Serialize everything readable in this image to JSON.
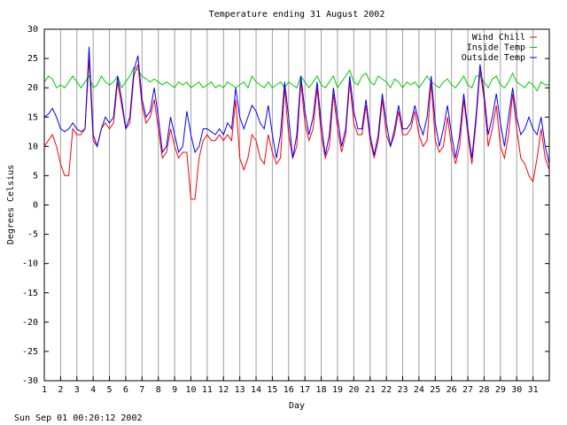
{
  "chart_data": {
    "type": "line",
    "title": "Temperature ending 31 August 2002",
    "x_label": "Day",
    "y_label": "Degrees Celsius",
    "timestamp": "Sun Sep 01 00:20:12 2002",
    "xlim": [
      1,
      32
    ],
    "xticks": [
      1,
      2,
      3,
      4,
      5,
      6,
      7,
      8,
      9,
      10,
      11,
      12,
      13,
      14,
      15,
      16,
      17,
      18,
      19,
      20,
      21,
      22,
      23,
      24,
      25,
      26,
      27,
      28,
      29,
      30,
      31
    ],
    "ylim": [
      -30,
      30
    ],
    "yticks": [
      -30,
      -25,
      -20,
      -15,
      -10,
      -5,
      0,
      5,
      10,
      15,
      20,
      25,
      30
    ],
    "grid": "x",
    "legend": "top-right",
    "x": [
      1,
      1.25,
      1.5,
      1.75,
      2,
      2.25,
      2.5,
      2.75,
      3,
      3.25,
      3.5,
      3.75,
      4,
      4.25,
      4.5,
      4.75,
      5,
      5.25,
      5.5,
      5.75,
      6,
      6.25,
      6.5,
      6.75,
      7,
      7.25,
      7.5,
      7.75,
      8,
      8.25,
      8.5,
      8.75,
      9,
      9.25,
      9.5,
      9.75,
      10,
      10.25,
      10.5,
      10.75,
      11,
      11.25,
      11.5,
      11.75,
      12,
      12.25,
      12.5,
      12.75,
      13,
      13.25,
      13.5,
      13.75,
      14,
      14.25,
      14.5,
      14.75,
      15,
      15.25,
      15.5,
      15.75,
      16,
      16.25,
      16.5,
      16.75,
      17,
      17.25,
      17.5,
      17.75,
      18,
      18.25,
      18.5,
      18.75,
      19,
      19.25,
      19.5,
      19.75,
      20,
      20.25,
      20.5,
      20.75,
      21,
      21.25,
      21.5,
      21.75,
      22,
      22.25,
      22.5,
      22.75,
      23,
      23.25,
      23.5,
      23.75,
      24,
      24.25,
      24.5,
      24.75,
      25,
      25.25,
      25.5,
      25.75,
      26,
      26.25,
      26.5,
      26.75,
      27,
      27.25,
      27.5,
      27.75,
      28,
      28.25,
      28.5,
      28.75,
      29,
      29.25,
      29.5,
      29.75,
      30,
      30.25,
      30.5,
      30.75,
      31,
      31.25,
      31.5,
      31.75,
      32
    ],
    "series": [
      {
        "name": "Wind Chill",
        "color": "#ff0000",
        "values": [
          10,
          11,
          12,
          10,
          7,
          5,
          5,
          13,
          12,
          12,
          13,
          25,
          11,
          10,
          13,
          14,
          13,
          14,
          21,
          17,
          13,
          14,
          22,
          24,
          17,
          14,
          15,
          18,
          13,
          8,
          9,
          13,
          10,
          8,
          9,
          9,
          1,
          1,
          8,
          11,
          12,
          11,
          11,
          12,
          11,
          12,
          11,
          18,
          8,
          6,
          8,
          12,
          11,
          8,
          7,
          12,
          9,
          7,
          8,
          20,
          12,
          8,
          10,
          21,
          14,
          11,
          13,
          20,
          12,
          8,
          10,
          19,
          13,
          9,
          12,
          21,
          14,
          12,
          12,
          17,
          11,
          8,
          11,
          18,
          12,
          10,
          12,
          16,
          12,
          12,
          13,
          16,
          12,
          10,
          11,
          21,
          11,
          9,
          10,
          15,
          10,
          7,
          10,
          18,
          12,
          7,
          14,
          23,
          18,
          10,
          13,
          17,
          10,
          8,
          12,
          19,
          13,
          8,
          7,
          5,
          4,
          8,
          13,
          8,
          6
        ]
      },
      {
        "name": "Inside Temp",
        "color": "#00cc00",
        "values": [
          21,
          22,
          21.5,
          20,
          20.5,
          20,
          21,
          22,
          21,
          20,
          21,
          22,
          20,
          20.5,
          22,
          21,
          20.5,
          21,
          22,
          20,
          21,
          22,
          23.5,
          23,
          22,
          21.5,
          21,
          21.5,
          21,
          20.5,
          21,
          20.5,
          20,
          21,
          20.5,
          21,
          20,
          20.5,
          21,
          20,
          20.5,
          21,
          20,
          20.5,
          20,
          21,
          20.5,
          20,
          20.5,
          21,
          20,
          22,
          21,
          20.5,
          20,
          21,
          20,
          20.5,
          21,
          20,
          21,
          20.5,
          20,
          22,
          21,
          20,
          21,
          22,
          20.5,
          20,
          21,
          22,
          20,
          21,
          22,
          23,
          21,
          20.5,
          22,
          22.5,
          21,
          20.5,
          22,
          21.5,
          21,
          20,
          21.5,
          21,
          20,
          21,
          20.5,
          21,
          20,
          21,
          22,
          21,
          20.5,
          20,
          21,
          21.5,
          20.5,
          20,
          21,
          22,
          20.5,
          20,
          22,
          22,
          21,
          20,
          21.5,
          22,
          20.5,
          20,
          21,
          22.5,
          21,
          20.5,
          20,
          21,
          20.5,
          19.5,
          21,
          20.5,
          20.5
        ]
      },
      {
        "name": "Outside Temp",
        "color": "#0000ff",
        "values": [
          15,
          15.5,
          16.5,
          15,
          13,
          12.5,
          13,
          14,
          13,
          12.5,
          13,
          27,
          12,
          10,
          13,
          15,
          14,
          15,
          22,
          18,
          13,
          15,
          23,
          25.5,
          18,
          15,
          16,
          20,
          15,
          9,
          10,
          15,
          12,
          9,
          10,
          16,
          12,
          9,
          10,
          13,
          13,
          12.5,
          12,
          13,
          12,
          14,
          13,
          20,
          15,
          13,
          15,
          17,
          16,
          14,
          13,
          17,
          12,
          8,
          12,
          21,
          15,
          8,
          12,
          22,
          16,
          12,
          15,
          21,
          14,
          8.5,
          12,
          20,
          15,
          10,
          13,
          22,
          16,
          13,
          13,
          18,
          12,
          8.5,
          12,
          19,
          14,
          10,
          13,
          17,
          13,
          13,
          14,
          17,
          14,
          12,
          15,
          22,
          14,
          10,
          13,
          17,
          12,
          8,
          12,
          19,
          13,
          8,
          15,
          24,
          19,
          12,
          15,
          19,
          14,
          10,
          15,
          20,
          15,
          12,
          13,
          15,
          13,
          12,
          15,
          10,
          7
        ]
      }
    ]
  }
}
